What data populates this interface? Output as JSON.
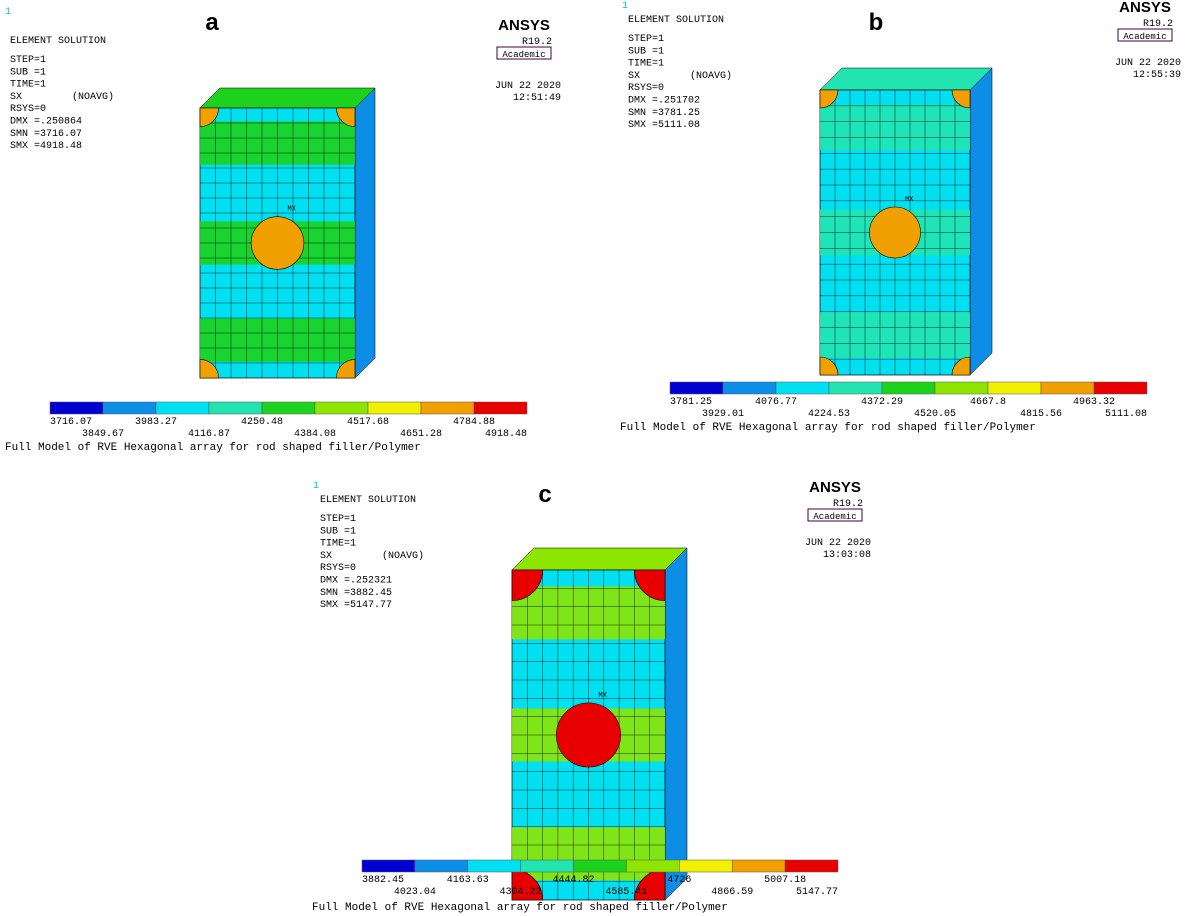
{
  "panels": [
    {
      "label": "a",
      "index": "1",
      "header": "ELEMENT SOLUTION",
      "step": "STEP=1",
      "sub": "SUB =1",
      "time": "TIME=1",
      "sx": "SX",
      "avg": "(NOAVG)",
      "rsys": "RSYS=0",
      "dmx": "DMX =.250864",
      "smn": "SMN =3716.07",
      "smx": "SMX =4918.48",
      "brand": "ANSYS",
      "version": "R19.2",
      "edition": "Academic",
      "date": "JUN 22 2020",
      "clock": "12:51:49",
      "mx": "MX",
      "legend": [
        "3716.07",
        "3849.67",
        "3983.27",
        "4116.87",
        "4250.48",
        "4384.08",
        "4517.68",
        "4651.28",
        "4784.88",
        "4918.48"
      ],
      "caption": "Full Model of RVE Hexagonal array for rod shaped filler/Polymer"
    },
    {
      "label": "b",
      "index": "1",
      "header": "ELEMENT SOLUTION",
      "step": "STEP=1",
      "sub": "SUB =1",
      "time": "TIME=1",
      "sx": "SX",
      "avg": "(NOAVG)",
      "rsys": "RSYS=0",
      "dmx": "DMX =.251702",
      "smn": "SMN =3781.25",
      "smx": "SMX =5111.08",
      "brand": "ANSYS",
      "version": "R19.2",
      "edition": "Academic",
      "date": "JUN 22 2020",
      "clock": "12:55:39",
      "mx": "MX",
      "legend": [
        "3781.25",
        "3929.01",
        "4076.77",
        "4224.53",
        "4372.29",
        "4520.05",
        "4667.8",
        "4815.56",
        "4963.32",
        "5111.08"
      ],
      "caption": "Full Model of RVE Hexagonal array for rod shaped filler/Polymer"
    },
    {
      "label": "c",
      "index": "1",
      "header": "ELEMENT SOLUTION",
      "step": "STEP=1",
      "sub": "SUB =1",
      "time": "TIME=1",
      "sx": "SX",
      "avg": "(NOAVG)",
      "rsys": "RSYS=0",
      "dmx": "DMX =.252321",
      "smn": "SMN =3882.45",
      "smx": "SMX =5147.77",
      "brand": "ANSYS",
      "version": "R19.2",
      "edition": "Academic",
      "date": "JUN 22 2020",
      "clock": "13:03:08",
      "mx": "MX",
      "legend": [
        "3882.45",
        "4023.04",
        "4163.63",
        "4304.22",
        "4444.82",
        "4585.41",
        "4726",
        "4866.59",
        "5007.18",
        "5147.77"
      ],
      "caption": "Full Model of RVE Hexagonal array for rod shaped filler/Polymer"
    }
  ]
}
